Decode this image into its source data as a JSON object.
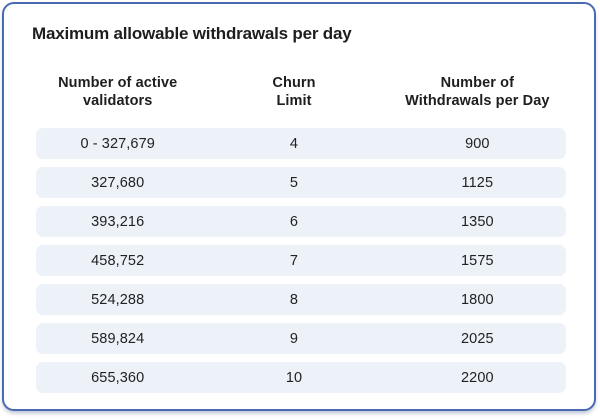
{
  "card": {
    "title": "Maximum allowable withdrawals per day"
  },
  "table": {
    "headers": [
      {
        "line1": "Number of active",
        "line2": "validators"
      },
      {
        "line1": "Churn",
        "line2": "Limit"
      },
      {
        "line1": "Number of",
        "line2": "Withdrawals per Day"
      }
    ],
    "rows": [
      {
        "validators": "0 - 327,679",
        "churn_limit": "4",
        "withdrawals_per_day": "900"
      },
      {
        "validators": "327,680",
        "churn_limit": "5",
        "withdrawals_per_day": "1125"
      },
      {
        "validators": "393,216",
        "churn_limit": "6",
        "withdrawals_per_day": "1350"
      },
      {
        "validators": "458,752",
        "churn_limit": "7",
        "withdrawals_per_day": "1575"
      },
      {
        "validators": "524,288",
        "churn_limit": "8",
        "withdrawals_per_day": "1800"
      },
      {
        "validators": "589,824",
        "churn_limit": "9",
        "withdrawals_per_day": "2025"
      },
      {
        "validators": "655,360",
        "churn_limit": "10",
        "withdrawals_per_day": "2200"
      }
    ]
  },
  "colors": {
    "card_border": "#4a6ab1",
    "row_background": "#edf1f8",
    "text": "#1d1e20"
  },
  "chart_data": {
    "type": "table",
    "title": "Maximum allowable withdrawals per day",
    "columns": [
      "Number of active validators",
      "Churn Limit",
      "Number of Withdrawals per Day"
    ],
    "rows": [
      [
        "0 - 327,679",
        4,
        900
      ],
      [
        "327,680",
        5,
        1125
      ],
      [
        "393,216",
        6,
        1350
      ],
      [
        "458,752",
        7,
        1575
      ],
      [
        "524,288",
        8,
        1800
      ],
      [
        "589,824",
        9,
        2025
      ],
      [
        "655,360",
        10,
        2200
      ]
    ]
  }
}
